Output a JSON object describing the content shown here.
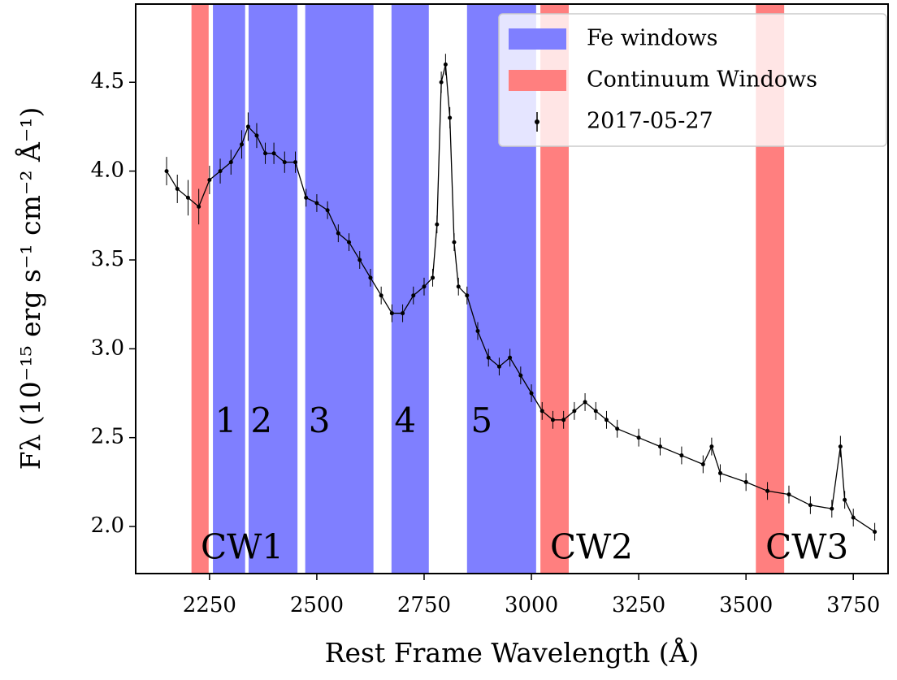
{
  "chart_data": {
    "type": "spectrum",
    "xlabel": "Rest Frame Wavelength (Å)",
    "ylabel": "Fλ (10⁻¹⁵ erg s⁻¹ cm⁻² Å⁻¹)",
    "xlim": [
      2078,
      3831
    ],
    "ylim": [
      1.735,
      4.94
    ],
    "xticks": [
      2250,
      2500,
      2750,
      3000,
      3250,
      3500,
      3750
    ],
    "yticks": [
      {
        "value": 2,
        "label": "2.0"
      },
      2.5,
      {
        "value": 3,
        "label": "3.0"
      },
      3.5,
      {
        "value": 4,
        "label": "4.0"
      },
      4.5
    ],
    "legend": "upper right",
    "annotations": [
      {
        "text": "1",
        "x": 2288,
        "y": 2.58
      },
      {
        "text": "2",
        "x": 2371,
        "y": 2.58
      },
      {
        "text": "3",
        "x": 2506,
        "y": 2.58
      },
      {
        "text": "4",
        "x": 2706,
        "y": 2.58
      },
      {
        "text": "5",
        "x": 2884,
        "y": 2.58
      },
      {
        "text": "CW1",
        "x": 2326,
        "y": 1.87
      },
      {
        "text": "CW2",
        "x": 3140,
        "y": 1.87
      },
      {
        "text": "CW3",
        "x": 3642,
        "y": 1.87
      }
    ],
    "series": [
      {
        "name": "Fe windows",
        "kind": "span",
        "color": "#7f7fff",
        "ranges": [
          [
            2258,
            2333
          ],
          [
            2341,
            2455
          ],
          [
            2473,
            2632
          ],
          [
            2674,
            2761
          ],
          [
            2850,
            3011
          ]
        ]
      },
      {
        "name": "Continuum Windows",
        "kind": "span",
        "color": "#ff7f7f",
        "ranges": [
          [
            2208,
            2248
          ],
          [
            3021,
            3087
          ],
          [
            3523,
            3589
          ]
        ]
      },
      {
        "name": "2017-05-27",
        "kind": "errorbar",
        "color": "#000000",
        "x": [
          2150,
          2175,
          2200,
          2225,
          2250,
          2275,
          2300,
          2325,
          2340,
          2360,
          2380,
          2400,
          2425,
          2450,
          2475,
          2500,
          2525,
          2550,
          2575,
          2600,
          2625,
          2650,
          2675,
          2700,
          2725,
          2750,
          2770,
          2780,
          2790,
          2800,
          2810,
          2820,
          2830,
          2850,
          2875,
          2900,
          2925,
          2950,
          2975,
          3000,
          3025,
          3050,
          3075,
          3100,
          3125,
          3150,
          3175,
          3200,
          3250,
          3300,
          3350,
          3400,
          3420,
          3440,
          3500,
          3550,
          3600,
          3650,
          3700,
          3720,
          3730,
          3750,
          3800
        ],
        "values": [
          4.0,
          3.9,
          3.85,
          3.8,
          3.95,
          4.0,
          4.05,
          4.15,
          4.25,
          4.2,
          4.1,
          4.1,
          4.05,
          4.05,
          3.85,
          3.82,
          3.78,
          3.65,
          3.6,
          3.5,
          3.4,
          3.3,
          3.2,
          3.2,
          3.3,
          3.35,
          3.4,
          3.7,
          4.5,
          4.6,
          4.3,
          3.6,
          3.35,
          3.3,
          3.1,
          2.95,
          2.9,
          2.95,
          2.85,
          2.75,
          2.65,
          2.6,
          2.6,
          2.65,
          2.7,
          2.65,
          2.6,
          2.55,
          2.5,
          2.45,
          2.4,
          2.35,
          2.45,
          2.3,
          2.25,
          2.2,
          2.18,
          2.12,
          2.1,
          2.45,
          2.15,
          2.05,
          1.97
        ],
        "errors": [
          0.08,
          0.08,
          0.1,
          0.1,
          0.08,
          0.07,
          0.07,
          0.08,
          0.08,
          0.07,
          0.06,
          0.06,
          0.06,
          0.06,
          0.05,
          0.05,
          0.05,
          0.05,
          0.05,
          0.05,
          0.05,
          0.05,
          0.05,
          0.05,
          0.05,
          0.05,
          0.05,
          0.05,
          0.06,
          0.06,
          0.06,
          0.05,
          0.05,
          0.05,
          0.05,
          0.05,
          0.05,
          0.05,
          0.05,
          0.05,
          0.05,
          0.05,
          0.05,
          0.05,
          0.05,
          0.05,
          0.05,
          0.05,
          0.05,
          0.05,
          0.05,
          0.05,
          0.05,
          0.05,
          0.05,
          0.05,
          0.05,
          0.05,
          0.05,
          0.06,
          0.05,
          0.05,
          0.05
        ]
      }
    ]
  }
}
